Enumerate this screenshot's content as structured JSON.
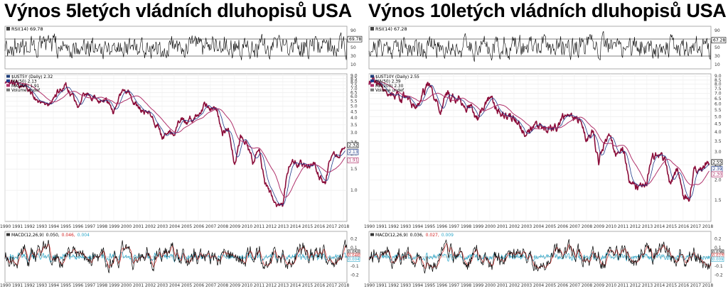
{
  "chart_data": [
    {
      "type": "line",
      "title": "Výnos 5letých vládních dluhopisů USA",
      "x_labels": [
        "1990",
        "1991",
        "1992",
        "1993",
        "1994",
        "1995",
        "1996",
        "1997",
        "1998",
        "1999",
        "2000",
        "2001",
        "2002",
        "2003",
        "2004",
        "2005",
        "2006",
        "2007",
        "2008",
        "2009",
        "2010",
        "2011",
        "2012",
        "2013",
        "2014",
        "2015",
        "2016",
        "2017",
        "2018"
      ],
      "rsi": {
        "label": "RSI(14) 69.78",
        "current": 69.78,
        "ticks": [
          "90",
          "70",
          "50",
          "30",
          "10"
        ],
        "ylim": [
          0,
          100
        ]
      },
      "price": {
        "legend": [
          "$UST5Y (Daily) 2.32",
          "MA(50) 2.13",
          "MA(200) 1.91",
          "Volume undef"
        ],
        "ticks": [
          "9.0",
          "8.5",
          "8.0",
          "7.5",
          "7.0",
          "6.5",
          "6.0",
          "5.5",
          "5.0",
          "4.5",
          "4.0",
          "3.5",
          "3.0",
          "2.5",
          "2.0",
          "1.5",
          "1.0"
        ],
        "tick_values": [
          9.0,
          8.5,
          8.0,
          7.5,
          7.0,
          6.5,
          6.0,
          5.5,
          5.0,
          4.5,
          4.0,
          3.5,
          3.0,
          2.5,
          2.0,
          1.5,
          1.0
        ],
        "ylim": [
          0.55,
          9.3
        ],
        "last_value_labels": [
          "2.32",
          "2.13",
          "1.91"
        ],
        "series": {
          "x": [
            1990.0,
            1990.5,
            1991.0,
            1991.5,
            1992.0,
            1992.5,
            1993.0,
            1993.5,
            1994.0,
            1994.5,
            1995.0,
            1995.5,
            1996.0,
            1996.5,
            1997.0,
            1997.5,
            1998.0,
            1998.5,
            1999.0,
            1999.5,
            2000.0,
            2000.5,
            2001.0,
            2001.5,
            2002.0,
            2002.5,
            2003.0,
            2003.5,
            2004.0,
            2004.5,
            2005.0,
            2005.5,
            2006.0,
            2006.5,
            2007.0,
            2007.5,
            2008.0,
            2008.5,
            2009.0,
            2009.5,
            2010.0,
            2010.5,
            2011.0,
            2011.5,
            2012.0,
            2012.5,
            2013.0,
            2013.5,
            2014.0,
            2014.5,
            2015.0,
            2015.5,
            2016.0,
            2016.5,
            2017.0,
            2017.5,
            2018.0
          ],
          "y": [
            7.9,
            8.3,
            7.7,
            7.3,
            6.6,
            6.0,
            5.7,
            5.0,
            5.1,
            6.7,
            7.8,
            6.2,
            5.3,
            6.5,
            6.3,
            6.2,
            5.5,
            5.5,
            4.7,
            5.9,
            6.7,
            6.2,
            4.7,
            4.6,
            4.4,
            3.7,
            2.9,
            3.1,
            3.1,
            3.9,
            3.8,
            4.0,
            4.4,
            5.1,
            4.8,
            4.9,
            3.0,
            3.2,
            1.6,
            2.7,
            2.6,
            1.7,
            2.2,
            1.1,
            0.9,
            0.7,
            0.7,
            1.6,
            1.7,
            1.7,
            1.5,
            1.7,
            1.3,
            1.1,
            1.9,
            1.9,
            2.3
          ]
        }
      },
      "macd": {
        "label_prefix": "MACD(12,26,9)",
        "macd_value": "0.050,",
        "signal_value": "0.046,",
        "histogram_value": "0.004",
        "ticks": [
          "0.2",
          "0.1",
          "0.0",
          "-0.1",
          "-0.2"
        ],
        "ylim": [
          -0.28,
          0.28
        ]
      },
      "colors": {
        "price": "#8b0d3a",
        "ma50": "#1e3a8a",
        "ma200": "#b0306a",
        "signal": "#d22222",
        "histogram": "#2aa6c9"
      }
    },
    {
      "type": "line",
      "title": "Výnos 10letých vládních dluhopisů USA",
      "x_labels": [
        "1990",
        "1991",
        "1992",
        "1993",
        "1994",
        "1995",
        "1996",
        "1997",
        "1998",
        "1999",
        "2000",
        "2001",
        "2002",
        "2003",
        "2004",
        "2005",
        "2006",
        "2007",
        "2008",
        "2009",
        "2010",
        "2011",
        "2012",
        "2013",
        "2014",
        "2015",
        "2016",
        "2017",
        "2018"
      ],
      "rsi": {
        "label": "RSI(14) 67.28",
        "current": 67.28,
        "ticks": [
          "90",
          "70",
          "50",
          "30",
          "10"
        ],
        "ylim": [
          0,
          100
        ]
      },
      "price": {
        "legend": [
          "$UST10Y (Daily) 2.55",
          "MA(50) 2.39",
          "MA(200) 2.30",
          "Volume undef"
        ],
        "ticks": [
          "9.0",
          "8.5",
          "8.0",
          "7.5",
          "7.0",
          "6.5",
          "6.0",
          "5.5",
          "5.0",
          "4.5",
          "4.0",
          "3.5",
          "3.0",
          "2.5",
          "2.0",
          "1.5"
        ],
        "tick_values": [
          9.0,
          8.5,
          8.0,
          7.5,
          7.0,
          6.5,
          6.0,
          5.5,
          5.0,
          4.5,
          4.0,
          3.5,
          3.0,
          2.5,
          2.0,
          1.5
        ],
        "ylim": [
          1.1,
          9.3
        ],
        "last_value_labels": [
          "2.55",
          "2.39",
          "2.30"
        ],
        "series": {
          "x": [
            1990.0,
            1990.5,
            1991.0,
            1991.5,
            1992.0,
            1992.5,
            1993.0,
            1993.5,
            1994.0,
            1994.5,
            1995.0,
            1995.5,
            1996.0,
            1996.5,
            1997.0,
            1997.5,
            1998.0,
            1998.5,
            1999.0,
            1999.5,
            2000.0,
            2000.5,
            2001.0,
            2001.5,
            2002.0,
            2002.5,
            2003.0,
            2003.5,
            2004.0,
            2004.5,
            2005.0,
            2005.5,
            2006.0,
            2006.5,
            2007.0,
            2007.5,
            2008.0,
            2008.5,
            2009.0,
            2009.5,
            2010.0,
            2010.5,
            2011.0,
            2011.5,
            2012.0,
            2012.5,
            2013.0,
            2013.5,
            2014.0,
            2014.5,
            2015.0,
            2015.5,
            2016.0,
            2016.5,
            2017.0,
            2017.5,
            2018.0
          ],
          "y": [
            8.1,
            8.5,
            7.9,
            7.6,
            7.1,
            6.7,
            6.4,
            5.7,
            5.8,
            7.2,
            7.8,
            6.3,
            5.8,
            6.8,
            6.5,
            6.3,
            5.6,
            5.5,
            4.8,
            5.9,
            6.6,
            5.9,
            5.1,
            5.2,
            5.0,
            4.3,
            3.9,
            4.1,
            4.3,
            4.6,
            4.2,
            4.1,
            4.5,
            5.1,
            4.7,
            4.9,
            3.6,
            3.9,
            2.5,
            3.5,
            3.7,
            2.9,
            3.4,
            2.0,
            1.8,
            1.7,
            1.9,
            2.8,
            2.9,
            2.5,
            1.9,
            2.3,
            1.6,
            1.5,
            2.4,
            2.2,
            2.55
          ]
        }
      },
      "macd": {
        "label_prefix": "MACD(12,26,9)",
        "macd_value": "0.036,",
        "signal_value": "0.027,",
        "histogram_value": "0.009",
        "ticks": [
          "0.2",
          "0.1",
          "0.0",
          "-0.1",
          "-0.2"
        ],
        "ylim": [
          -0.28,
          0.28
        ]
      },
      "colors": {
        "price": "#8b0d3a",
        "ma50": "#1e3a8a",
        "ma200": "#b0306a",
        "signal": "#d22222",
        "histogram": "#2aa6c9"
      }
    }
  ]
}
